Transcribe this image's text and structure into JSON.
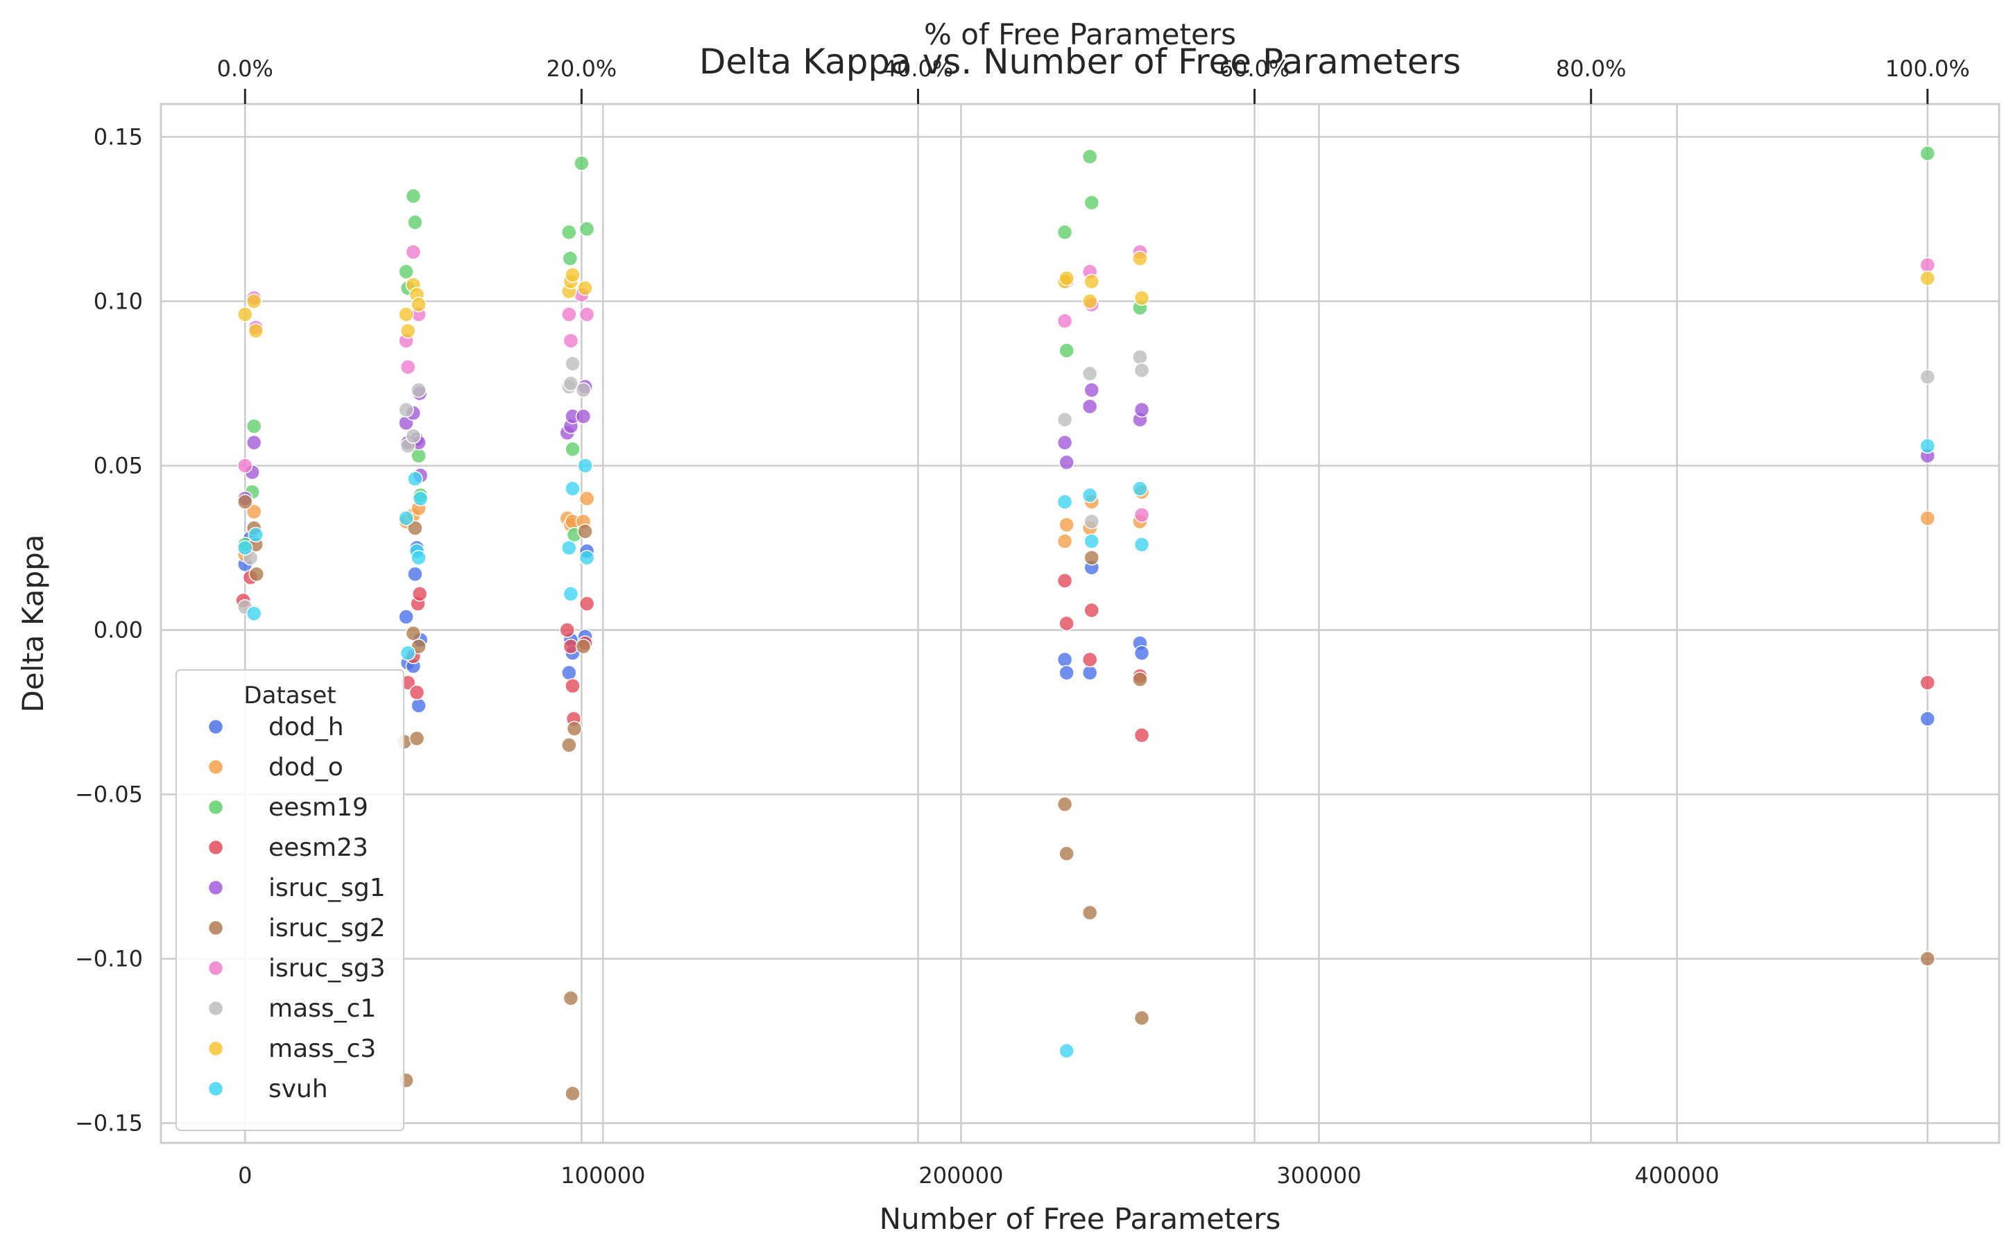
{
  "chart_data": {
    "type": "scatter",
    "title": "Delta Kappa vs. Number of Free Parameters",
    "xlabel": "Number of Free Parameters",
    "ylabel": "Delta Kappa",
    "top_xlabel": "% of Free Parameters",
    "xlim": [
      -23500,
      490000
    ],
    "ylim": [
      -0.156,
      0.16
    ],
    "xticks": [
      0,
      100000,
      200000,
      300000,
      400000
    ],
    "xtick_labels": [
      "0",
      "100000",
      "200000",
      "300000",
      "400000"
    ],
    "yticks": [
      0.15,
      0.1,
      0.05,
      0.0,
      -0.05,
      -0.1,
      -0.15
    ],
    "ytick_labels": [
      "0.15",
      "0.10",
      "0.05",
      "0.00",
      "−0.05",
      "−0.10",
      "−0.15"
    ],
    "top_xticks": [
      0,
      94000,
      188000,
      282000,
      376000,
      470000
    ],
    "top_xtick_labels": [
      "0.0%",
      "20.0%",
      "40.0%",
      "60.0%",
      "80.0%",
      "100.0%"
    ],
    "grid": true,
    "legend": {
      "title": "Dataset",
      "placement": "lower-left"
    },
    "series": [
      {
        "name": "dod_h",
        "color": "#4c72e8",
        "points": [
          [
            0,
            0.02
          ],
          [
            1500,
            0.028
          ],
          [
            45000,
            0.004
          ],
          [
            45500,
            -0.01
          ],
          [
            47000,
            -0.011
          ],
          [
            47500,
            0.017
          ],
          [
            48000,
            0.025
          ],
          [
            48500,
            -0.023
          ],
          [
            49000,
            -0.003
          ],
          [
            90500,
            -0.013
          ],
          [
            91000,
            -0.003
          ],
          [
            91500,
            -0.007
          ],
          [
            95000,
            -0.002
          ],
          [
            95500,
            0.024
          ],
          [
            229000,
            -0.009
          ],
          [
            229500,
            -0.013
          ],
          [
            236000,
            -0.013
          ],
          [
            236500,
            0.019
          ],
          [
            250000,
            -0.004
          ],
          [
            250500,
            -0.007
          ],
          [
            470000,
            -0.027
          ]
        ]
      },
      {
        "name": "dod_o",
        "color": "#f5a04a",
        "points": [
          [
            0,
            0.023
          ],
          [
            2500,
            0.036
          ],
          [
            45000,
            0.033
          ],
          [
            47000,
            0.035
          ],
          [
            48500,
            0.037
          ],
          [
            90000,
            0.034
          ],
          [
            91000,
            0.032
          ],
          [
            91500,
            0.033
          ],
          [
            94500,
            0.033
          ],
          [
            95500,
            0.04
          ],
          [
            229000,
            0.027
          ],
          [
            229500,
            0.032
          ],
          [
            236000,
            0.031
          ],
          [
            236500,
            0.039
          ],
          [
            250000,
            0.033
          ],
          [
            250500,
            0.042
          ],
          [
            470000,
            0.034
          ]
        ]
      },
      {
        "name": "eesm19",
        "color": "#5fcf6a",
        "points": [
          [
            0,
            0.026
          ],
          [
            2000,
            0.042
          ],
          [
            2500,
            0.062
          ],
          [
            45000,
            0.109
          ],
          [
            45500,
            0.104
          ],
          [
            47000,
            0.132
          ],
          [
            47500,
            0.124
          ],
          [
            48500,
            0.053
          ],
          [
            49000,
            0.041
          ],
          [
            90500,
            0.121
          ],
          [
            90800,
            0.113
          ],
          [
            91500,
            0.055
          ],
          [
            92000,
            0.029
          ],
          [
            94000,
            0.142
          ],
          [
            95500,
            0.122
          ],
          [
            229000,
            0.121
          ],
          [
            229500,
            0.085
          ],
          [
            236000,
            0.144
          ],
          [
            236500,
            0.13
          ],
          [
            250000,
            0.098
          ],
          [
            470000,
            0.145
          ]
        ]
      },
      {
        "name": "eesm23",
        "color": "#e24b5a",
        "points": [
          [
            -500,
            0.009
          ],
          [
            1500,
            0.016
          ],
          [
            45500,
            -0.016
          ],
          [
            47000,
            -0.008
          ],
          [
            48000,
            -0.019
          ],
          [
            48300,
            0.008
          ],
          [
            48800,
            0.011
          ],
          [
            90000,
            0.0
          ],
          [
            91000,
            -0.005
          ],
          [
            91500,
            -0.017
          ],
          [
            91800,
            -0.027
          ],
          [
            95000,
            -0.004
          ],
          [
            95500,
            0.008
          ],
          [
            229000,
            0.015
          ],
          [
            229500,
            0.002
          ],
          [
            236000,
            -0.009
          ],
          [
            236500,
            0.006
          ],
          [
            250000,
            -0.014
          ],
          [
            250500,
            -0.032
          ],
          [
            470000,
            -0.016
          ]
        ]
      },
      {
        "name": "isruc_sg1",
        "color": "#a25ad9",
        "points": [
          [
            0,
            0.04
          ],
          [
            2000,
            0.048
          ],
          [
            2500,
            0.057
          ],
          [
            45000,
            0.063
          ],
          [
            45500,
            0.057
          ],
          [
            47000,
            0.066
          ],
          [
            48000,
            0.058
          ],
          [
            48500,
            0.057
          ],
          [
            48800,
            0.072
          ],
          [
            49000,
            0.047
          ],
          [
            90000,
            0.06
          ],
          [
            91000,
            0.062
          ],
          [
            91500,
            0.065
          ],
          [
            94500,
            0.065
          ],
          [
            95000,
            0.074
          ],
          [
            229000,
            0.057
          ],
          [
            229500,
            0.051
          ],
          [
            236000,
            0.068
          ],
          [
            236500,
            0.073
          ],
          [
            250000,
            0.064
          ],
          [
            250500,
            0.067
          ],
          [
            470000,
            0.053
          ]
        ]
      },
      {
        "name": "isruc_sg2",
        "color": "#b07a4f",
        "points": [
          [
            0,
            0.039
          ],
          [
            2500,
            0.031
          ],
          [
            3000,
            0.026
          ],
          [
            3200,
            0.017
          ],
          [
            44500,
            -0.034
          ],
          [
            45000,
            -0.137
          ],
          [
            47000,
            -0.001
          ],
          [
            47500,
            0.031
          ],
          [
            48000,
            -0.033
          ],
          [
            48500,
            -0.005
          ],
          [
            90500,
            -0.035
          ],
          [
            91000,
            -0.112
          ],
          [
            91500,
            -0.141
          ],
          [
            92000,
            -0.03
          ],
          [
            94500,
            -0.005
          ],
          [
            95000,
            0.03
          ],
          [
            229000,
            -0.053
          ],
          [
            229500,
            -0.068
          ],
          [
            236000,
            -0.086
          ],
          [
            236500,
            0.022
          ],
          [
            250000,
            -0.015
          ],
          [
            250500,
            -0.118
          ],
          [
            470000,
            -0.1
          ]
        ]
      },
      {
        "name": "isruc_sg3",
        "color": "#f07ccf",
        "points": [
          [
            0,
            0.05
          ],
          [
            2500,
            0.101
          ],
          [
            3000,
            0.092
          ],
          [
            45000,
            0.088
          ],
          [
            45500,
            0.08
          ],
          [
            47000,
            0.115
          ],
          [
            48500,
            0.096
          ],
          [
            90500,
            0.096
          ],
          [
            91000,
            0.088
          ],
          [
            94000,
            0.102
          ],
          [
            95500,
            0.096
          ],
          [
            229000,
            0.094
          ],
          [
            229500,
            0.106
          ],
          [
            236000,
            0.109
          ],
          [
            236500,
            0.099
          ],
          [
            250000,
            0.115
          ],
          [
            250500,
            0.035
          ],
          [
            470000,
            0.111
          ]
        ]
      },
      {
        "name": "mass_c1",
        "color": "#bdbdbd",
        "points": [
          [
            0,
            0.007
          ],
          [
            1500,
            0.022
          ],
          [
            45000,
            0.067
          ],
          [
            45500,
            0.056
          ],
          [
            47000,
            0.059
          ],
          [
            48500,
            0.073
          ],
          [
            90500,
            0.074
          ],
          [
            91000,
            0.075
          ],
          [
            91500,
            0.081
          ],
          [
            94500,
            0.073
          ],
          [
            229000,
            0.064
          ],
          [
            236000,
            0.078
          ],
          [
            236500,
            0.033
          ],
          [
            250000,
            0.083
          ],
          [
            250500,
            0.079
          ],
          [
            470000,
            0.077
          ]
        ]
      },
      {
        "name": "mass_c3",
        "color": "#f5c431",
        "points": [
          [
            0,
            0.096
          ],
          [
            2500,
            0.1
          ],
          [
            3000,
            0.091
          ],
          [
            45000,
            0.096
          ],
          [
            45500,
            0.091
          ],
          [
            47000,
            0.105
          ],
          [
            48000,
            0.102
          ],
          [
            48500,
            0.099
          ],
          [
            90500,
            0.103
          ],
          [
            91000,
            0.106
          ],
          [
            91500,
            0.108
          ],
          [
            95000,
            0.104
          ],
          [
            229000,
            0.106
          ],
          [
            229500,
            0.107
          ],
          [
            236000,
            0.1
          ],
          [
            236500,
            0.106
          ],
          [
            250000,
            0.113
          ],
          [
            250500,
            0.101
          ],
          [
            470000,
            0.107
          ]
        ]
      },
      {
        "name": "svuh",
        "color": "#3fd5f2",
        "points": [
          [
            0,
            0.025
          ],
          [
            2500,
            0.005
          ],
          [
            3000,
            0.029
          ],
          [
            45000,
            0.034
          ],
          [
            45500,
            -0.007
          ],
          [
            47500,
            0.046
          ],
          [
            48000,
            0.024
          ],
          [
            48500,
            0.022
          ],
          [
            49000,
            0.04
          ],
          [
            90500,
            0.025
          ],
          [
            91000,
            0.011
          ],
          [
            91500,
            0.043
          ],
          [
            95000,
            0.05
          ],
          [
            95500,
            0.022
          ],
          [
            229000,
            0.039
          ],
          [
            229500,
            -0.128
          ],
          [
            236000,
            0.041
          ],
          [
            236500,
            0.027
          ],
          [
            250000,
            0.043
          ],
          [
            250500,
            0.026
          ],
          [
            470000,
            0.056
          ]
        ]
      }
    ]
  }
}
